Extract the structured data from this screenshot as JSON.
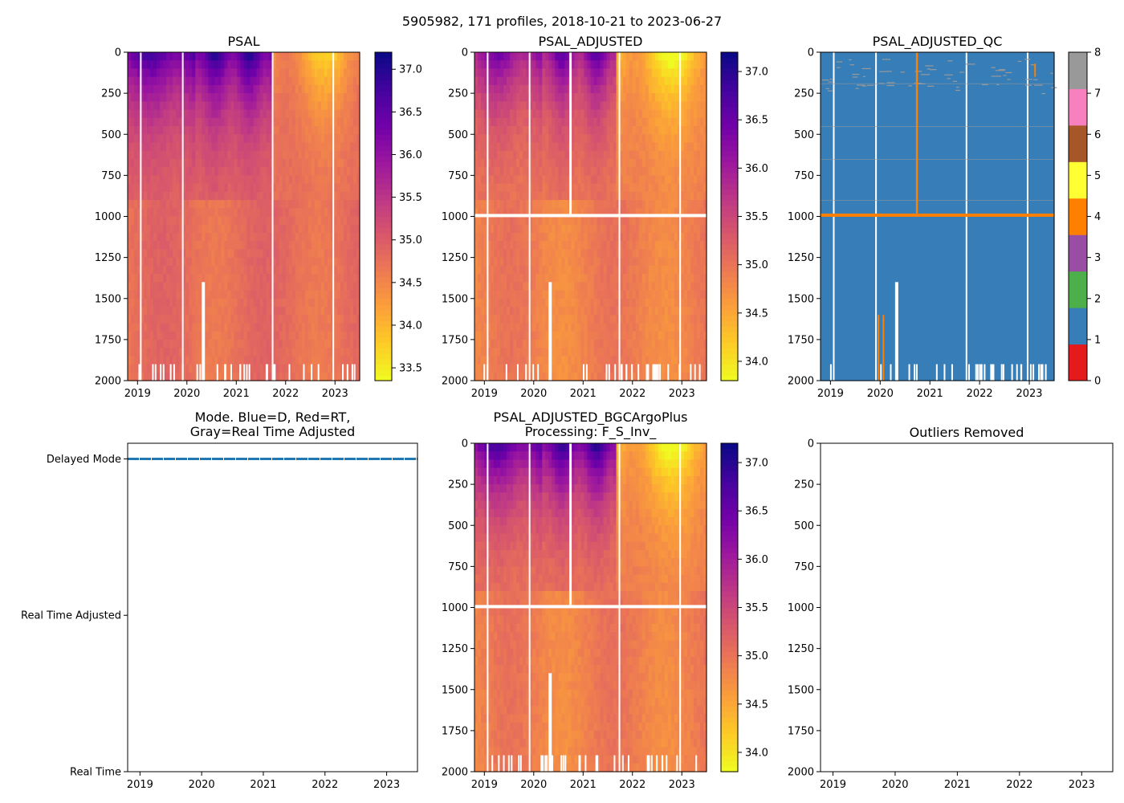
{
  "figure": {
    "suptitle": "5905982, 171 profiles, 2018-10-21 to 2023-06-27"
  },
  "colors": {
    "plasma_stops": [
      "#0d0887",
      "#46039f",
      "#7201a8",
      "#9c179e",
      "#bd3786",
      "#d8576b",
      "#ed7953",
      "#fb9f3a",
      "#fdca26",
      "#f0f921"
    ],
    "qc_classes": [
      "#e41a1c",
      "#377eb8",
      "#4daf4a",
      "#984ea3",
      "#ff7f00",
      "#ffff33",
      "#a65628",
      "#f781bf",
      "#999999"
    ],
    "mode_line": "#1f77b4",
    "gap": "#ffffff"
  },
  "chart_data": [
    {
      "id": "psal",
      "type": "heatmap",
      "title": "PSAL",
      "x_ticks": [
        "2019",
        "2020",
        "2021",
        "2022",
        "2023"
      ],
      "x_tick_years": [
        2019,
        2020,
        2021,
        2022,
        2023
      ],
      "xlim": [
        2018.8,
        2023.5
      ],
      "y_ticks": [
        "0",
        "250",
        "500",
        "750",
        "1000",
        "1250",
        "1500",
        "1750",
        "2000"
      ],
      "y_tick_values": [
        0,
        250,
        500,
        750,
        1000,
        1250,
        1500,
        1750,
        2000
      ],
      "ylim": [
        2000,
        0
      ],
      "colorbar_ticks": [
        "33.5",
        "34.0",
        "34.5",
        "35.0",
        "35.5",
        "36.0",
        "36.5",
        "37.0"
      ],
      "colorbar_values": [
        33.5,
        34.0,
        34.5,
        35.0,
        35.5,
        36.0,
        36.5,
        37.0
      ],
      "clim": [
        33.35,
        37.2
      ],
      "surface_max_salinity": 37.0,
      "deep_salinity": 34.8,
      "fresh_after_year": 2021.75,
      "band_at_1000": false
    },
    {
      "id": "psal_adjusted",
      "type": "heatmap",
      "title": "PSAL_ADJUSTED",
      "x_ticks": [
        "2019",
        "2020",
        "2021",
        "2022",
        "2023"
      ],
      "x_tick_years": [
        2019,
        2020,
        2021,
        2022,
        2023
      ],
      "xlim": [
        2018.8,
        2023.5
      ],
      "y_ticks": [
        "0",
        "250",
        "500",
        "750",
        "1000",
        "1250",
        "1500",
        "1750",
        "2000"
      ],
      "y_tick_values": [
        0,
        250,
        500,
        750,
        1000,
        1250,
        1500,
        1750,
        2000
      ],
      "ylim": [
        2000,
        0
      ],
      "colorbar_ticks": [
        "34.0",
        "34.5",
        "35.0",
        "35.5",
        "36.0",
        "36.5",
        "37.0"
      ],
      "colorbar_values": [
        34.0,
        34.5,
        35.0,
        35.5,
        36.0,
        36.5,
        37.0
      ],
      "clim": [
        33.8,
        37.2
      ],
      "surface_max_salinity": 36.6,
      "deep_salinity": 34.9,
      "fresh_after_year": 2021.7,
      "band_at_1000": true
    },
    {
      "id": "psal_adjusted_qc",
      "type": "heatmap",
      "title": "PSAL_ADJUSTED_QC",
      "x_ticks": [
        "2019",
        "2020",
        "2021",
        "2022",
        "2023"
      ],
      "x_tick_years": [
        2019,
        2020,
        2021,
        2022,
        2023
      ],
      "xlim": [
        2018.8,
        2023.5
      ],
      "y_ticks": [
        "0",
        "250",
        "500",
        "750",
        "1000",
        "1250",
        "1500",
        "1750",
        "2000"
      ],
      "y_tick_values": [
        0,
        250,
        500,
        750,
        1000,
        1250,
        1500,
        1750,
        2000
      ],
      "ylim": [
        2000,
        0
      ],
      "colorbar_ticks": [
        "0",
        "1",
        "2",
        "3",
        "4",
        "5",
        "6",
        "7",
        "8"
      ],
      "colorbar_values": [
        0,
        1,
        2,
        3,
        4,
        5,
        6,
        7,
        8
      ],
      "dominant_flag": 1,
      "flag4_depth": 990,
      "flag4_spike_year": 2020.72
    },
    {
      "id": "mode",
      "type": "line",
      "title": "Mode. Blue=D, Red=RT,",
      "title_line2": "Gray=Real Time Adjusted",
      "x_ticks": [
        "2019",
        "2020",
        "2021",
        "2022",
        "2023"
      ],
      "x_tick_years": [
        2019,
        2020,
        2021,
        2022,
        2023
      ],
      "xlim": [
        2018.8,
        2023.5
      ],
      "y_ticks": [
        "Delayed Mode",
        "Real Time Adjusted",
        "Real Time"
      ],
      "y_tick_values": [
        2,
        1,
        0
      ],
      "ylim": [
        0,
        2.1
      ],
      "series": [
        {
          "name": "Delayed Mode",
          "value": 2,
          "x_range": [
            2018.8,
            2023.5
          ]
        }
      ]
    },
    {
      "id": "bgc",
      "type": "heatmap",
      "title": "PSAL_ADJUSTED_BGCArgoPlus",
      "title_line2": "Processing: F_S_Inv_",
      "x_ticks": [
        "2019",
        "2020",
        "2021",
        "2022",
        "2023"
      ],
      "x_tick_years": [
        2019,
        2020,
        2021,
        2022,
        2023
      ],
      "xlim": [
        2018.8,
        2023.5
      ],
      "y_ticks": [
        "0",
        "250",
        "500",
        "750",
        "1000",
        "1250",
        "1500",
        "1750",
        "2000"
      ],
      "y_tick_values": [
        0,
        250,
        500,
        750,
        1000,
        1250,
        1500,
        1750,
        2000
      ],
      "ylim": [
        2000,
        0
      ],
      "colorbar_ticks": [
        "34.0",
        "34.5",
        "35.0",
        "35.5",
        "36.0",
        "36.5",
        "37.0"
      ],
      "colorbar_values": [
        34.0,
        34.5,
        35.0,
        35.5,
        36.0,
        36.5,
        37.0
      ],
      "clim": [
        33.8,
        37.2
      ],
      "surface_max_salinity": 37.0,
      "deep_salinity": 34.9,
      "fresh_after_year": 2021.7,
      "band_at_1000": true
    },
    {
      "id": "outliers",
      "type": "scatter",
      "title": "Outliers Removed",
      "x_ticks": [
        "2019",
        "2020",
        "2021",
        "2022",
        "2023"
      ],
      "x_tick_years": [
        2019,
        2020,
        2021,
        2022,
        2023
      ],
      "xlim": [
        2018.8,
        2023.5
      ],
      "y_ticks": [
        "0",
        "250",
        "500",
        "750",
        "1000",
        "1250",
        "1500",
        "1750",
        "2000"
      ],
      "y_tick_values": [
        0,
        250,
        500,
        750,
        1000,
        1250,
        1500,
        1750,
        2000
      ],
      "ylim": [
        2000,
        0
      ],
      "points": []
    }
  ]
}
